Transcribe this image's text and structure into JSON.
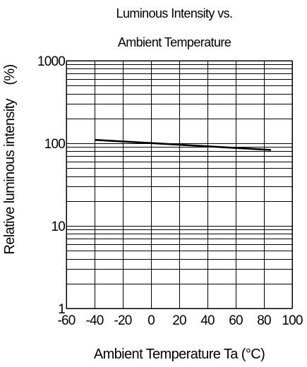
{
  "chart_data": {
    "type": "line",
    "title_lines": [
      "Luminous Intensity vs.",
      "Ambient Temperature"
    ],
    "xlabel": "Ambient Temperature Ta (°C)",
    "ylabel": "Relative luminous intensity　(%)",
    "x_scale": "linear",
    "y_scale": "log",
    "xlim": [
      -60,
      100
    ],
    "ylim": [
      1,
      1000
    ],
    "x_ticks": [
      -60,
      -40,
      -20,
      0,
      20,
      40,
      60,
      80,
      100
    ],
    "x_tick_labels": [
      "-60",
      "-40",
      "-20",
      "0",
      "20",
      "40",
      "60",
      "80",
      "100"
    ],
    "y_ticks": [
      1,
      10,
      100,
      1000
    ],
    "y_tick_labels": [
      "1",
      "10",
      "100",
      "1000"
    ],
    "grid": true,
    "series": [
      {
        "color": "#000000",
        "x": [
          -40,
          85
        ],
        "y": [
          110,
          83
        ]
      }
    ]
  }
}
